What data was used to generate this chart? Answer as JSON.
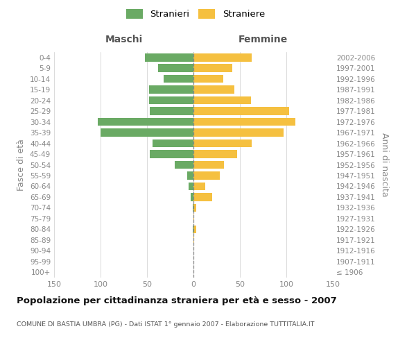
{
  "age_groups": [
    "100+",
    "95-99",
    "90-94",
    "85-89",
    "80-84",
    "75-79",
    "70-74",
    "65-69",
    "60-64",
    "55-59",
    "50-54",
    "45-49",
    "40-44",
    "35-39",
    "30-34",
    "25-29",
    "20-24",
    "15-19",
    "10-14",
    "5-9",
    "0-4"
  ],
  "birth_years": [
    "≤ 1906",
    "1907-1911",
    "1912-1916",
    "1917-1921",
    "1922-1926",
    "1927-1931",
    "1932-1936",
    "1937-1941",
    "1942-1946",
    "1947-1951",
    "1952-1956",
    "1957-1961",
    "1962-1966",
    "1967-1971",
    "1972-1976",
    "1977-1981",
    "1982-1986",
    "1987-1991",
    "1992-1996",
    "1997-2001",
    "2002-2006"
  ],
  "maschi": [
    0,
    0,
    0,
    0,
    1,
    0,
    1,
    3,
    5,
    7,
    20,
    47,
    44,
    100,
    103,
    47,
    48,
    48,
    32,
    38,
    52
  ],
  "femmine": [
    0,
    0,
    0,
    1,
    3,
    1,
    3,
    20,
    13,
    28,
    33,
    47,
    63,
    97,
    110,
    103,
    62,
    44,
    32,
    42,
    63
  ],
  "male_color": "#6aaa64",
  "female_color": "#f5c040",
  "center_line_color": "#888888",
  "grid_color": "#cccccc",
  "title": "Popolazione per cittadinanza straniera per età e sesso - 2007",
  "subtitle": "COMUNE DI BASTIA UMBRA (PG) - Dati ISTAT 1° gennaio 2007 - Elaborazione TUTTITALIA.IT",
  "xlabel_left": "Maschi",
  "xlabel_right": "Femmine",
  "ylabel_left": "Fasce di età",
  "ylabel_right": "Anni di nascita",
  "xlim": 150,
  "legend_stranieri": "Stranieri",
  "legend_straniere": "Straniere",
  "background_color": "#ffffff",
  "tick_color": "#888888",
  "title_color": "#111111",
  "subtitle_color": "#555555",
  "header_color": "#555555"
}
